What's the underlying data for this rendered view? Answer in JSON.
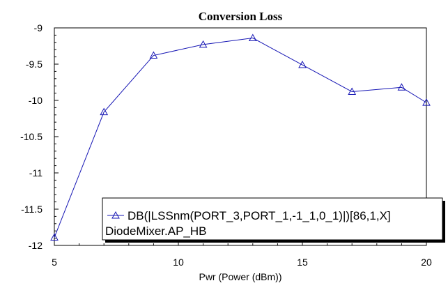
{
  "chart_data": {
    "type": "line",
    "title": "Conversion Loss",
    "xlabel": "Pwr (Power (dBm))",
    "ylabel": "",
    "xlim": [
      5,
      20
    ],
    "ylim": [
      -12,
      -9
    ],
    "x_ticks": [
      "5",
      "10",
      "15",
      "20"
    ],
    "y_ticks": [
      "-9",
      "-9.5",
      "-10",
      "-10.5",
      "-11",
      "-11.5",
      "-12"
    ],
    "x": [
      5,
      7,
      9,
      11,
      13,
      15,
      17,
      19,
      20
    ],
    "series": [
      {
        "name": "DB(|LSSnm(PORT_3,PORT_1,-1_1,0_1)|)[86,1,X]",
        "values": [
          -11.89,
          -10.16,
          -9.38,
          -9.23,
          -9.14,
          -9.51,
          -9.88,
          -9.82,
          -10.03
        ],
        "color": "#1515b4",
        "marker": "triangle"
      }
    ],
    "legend": {
      "line1": "DB(|LSSnm(PORT_3,PORT_1,-1_1,0_1)|)[86,1,X]",
      "line2": "DiodeMixer.AP_HB",
      "position": "bottom-right"
    },
    "grid": "none"
  }
}
